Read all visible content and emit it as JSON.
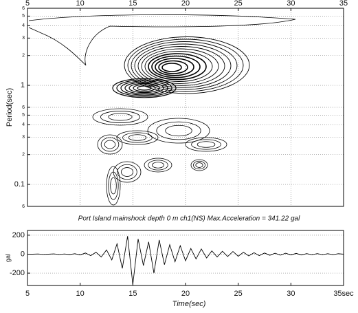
{
  "chart_data": [
    {
      "type": "contour",
      "ylabel": "Period(sec)",
      "xlim": [
        5,
        35
      ],
      "xticks": [
        5,
        10,
        15,
        20,
        25,
        30,
        35
      ],
      "ylim": [
        0.06,
        6
      ],
      "log_scale_y": true,
      "yticks": [
        {
          "value": 0.06,
          "label": "6"
        },
        0.1,
        {
          "value": 0.2,
          "label": "2"
        },
        {
          "value": 0.3,
          "label": "3"
        },
        {
          "value": 0.4,
          "label": "4"
        },
        {
          "value": 0.5,
          "label": "5"
        },
        {
          "value": 0.6,
          "label": "6"
        },
        1,
        {
          "value": 2,
          "label": "2"
        },
        {
          "value": 3,
          "label": "3"
        },
        {
          "value": 4,
          "label": "4"
        },
        {
          "value": 5,
          "label": "5"
        },
        {
          "value": 6,
          "label": "6"
        }
      ],
      "grid": true,
      "color": "#000000"
    },
    {
      "type": "line",
      "title": "Port Island mainshock depth 0 m ch1(NS)   Max.Acceleration = 341.22 gal",
      "xlabel": "Time(sec)",
      "ylabel": "gal",
      "xlim": [
        5,
        35
      ],
      "xticks": [
        5,
        10,
        15,
        20,
        25,
        30,
        {
          "value": 35,
          "label": "35sec"
        }
      ],
      "ylim": [
        -330,
        250
      ],
      "yticks": [
        -200,
        0,
        200
      ],
      "x": [
        5,
        5.5,
        6,
        6.5,
        7,
        7.5,
        8,
        8.5,
        9,
        9.5,
        10,
        10.5,
        11,
        11.5,
        12,
        12.5,
        13,
        13.5,
        14,
        14.5,
        15,
        15.5,
        16,
        16.5,
        17,
        17.5,
        18,
        18.5,
        19,
        19.5,
        20,
        20.5,
        21,
        21.5,
        22,
        22.5,
        23,
        23.5,
        24,
        24.5,
        25,
        25.5,
        26,
        26.5,
        27,
        27.5,
        28,
        28.5,
        29,
        29.5,
        30,
        30.5,
        31,
        31.5,
        32,
        32.5,
        33,
        33.5,
        34,
        34.5,
        35
      ],
      "series": [
        {
          "color": "#000000",
          "values": [
            0,
            0,
            2,
            -2,
            0,
            3,
            -3,
            2,
            -4,
            5,
            -8,
            12,
            -15,
            20,
            -30,
            45,
            -60,
            110,
            -150,
            190,
            -320,
            160,
            -120,
            130,
            -200,
            150,
            -110,
            100,
            -80,
            90,
            -70,
            60,
            -50,
            55,
            -40,
            35,
            -30,
            30,
            -25,
            28,
            -22,
            20,
            -18,
            15,
            -15,
            12,
            -12,
            10,
            -10,
            10,
            -8,
            8,
            -8,
            6,
            -6,
            6,
            -5,
            5,
            -5,
            5,
            0
          ]
        }
      ],
      "grid": true
    }
  ]
}
